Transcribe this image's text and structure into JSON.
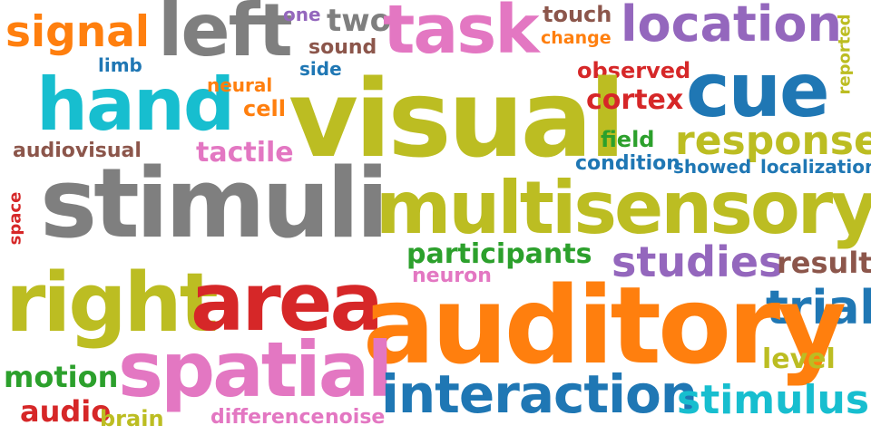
{
  "palette": {
    "orange": "#ff7f0e",
    "gray": "#7f7f7f",
    "pink": "#e377c2",
    "brown": "#8c564b",
    "purple": "#9467bd",
    "blue": "#1f77b4",
    "olive": "#bcbd22",
    "cyan": "#17becf",
    "red": "#d62728",
    "green": "#2ca02c"
  },
  "words": {
    "signal": "signal",
    "left": "left",
    "one": "one",
    "two": "two",
    "task": "task",
    "touch": "touch",
    "location": "location",
    "reported": "reported",
    "change": "change",
    "sound": "sound",
    "limb": "limb",
    "side": "side",
    "hand": "hand",
    "neural": "neural",
    "observed": "observed",
    "cue": "cue",
    "cell": "cell",
    "visual": "visual",
    "cortex": "cortex",
    "response": "response",
    "field": "field",
    "audiovisual": "audiovisual",
    "tactile": "tactile",
    "condition": "condition",
    "showed": "showed",
    "localization": "localization",
    "space": "space",
    "stimuli": "stimuli",
    "multisensory": "multisensory",
    "participants": "participants",
    "studies": "studies",
    "result": "result",
    "neuron": "neuron",
    "right": "right",
    "area": "area",
    "trial": "trial",
    "auditory": "auditory",
    "level": "level",
    "motion": "motion",
    "spatial": "spatial",
    "interaction": "interaction",
    "stimulus": "stimulus",
    "audio": "audio",
    "brain": "brain",
    "difference": "difference",
    "noise": "noise"
  }
}
